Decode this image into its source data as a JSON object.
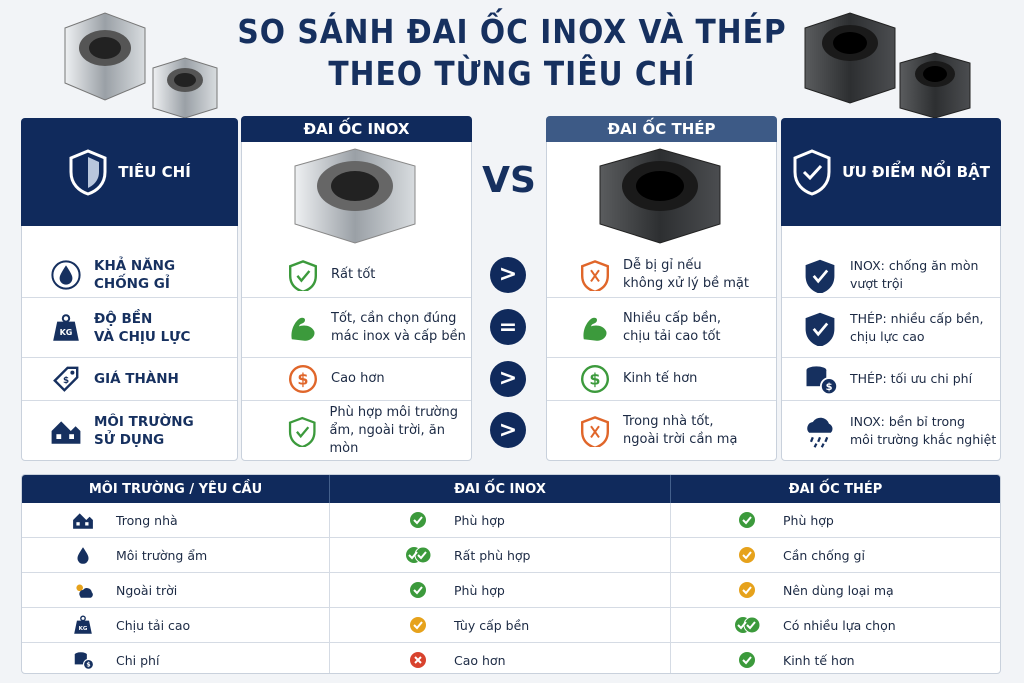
{
  "title": [
    "SO SÁNH ĐAI ỐC INOX VÀ THÉP",
    "THEO TỪNG TIÊU CHÍ"
  ],
  "comparison": {
    "headers": {
      "criteria": "TIÊU CHÍ",
      "inox": "ĐAI ỐC INOX",
      "vs": "VS",
      "steel": "ĐAI ỐC THÉP",
      "advantages": "ƯU ĐIỂM NỔI BẬT"
    },
    "rows": [
      {
        "criterion": "KHẢ NĂNG\nCHỐNG GỈ",
        "inox": "Rất tốt",
        "compare": ">",
        "steel": "Dễ bị gỉ nếu\nkhông xử lý bề mặt",
        "advantage": "INOX: chống ăn mòn\nvượt trội"
      },
      {
        "criterion": "ĐỘ BỀN\nVÀ CHỊU LỰC",
        "inox": "Tốt, cần chọn đúng\nmác inox và cấp bền",
        "compare": "=",
        "steel": "Nhiều cấp bền,\nchịu tải cao tốt",
        "advantage": "THÉP: nhiều cấp bền,\nchịu lực cao"
      },
      {
        "criterion": "GIÁ THÀNH",
        "inox": "Cao hơn",
        "compare": ">",
        "steel": "Kinh tế hơn",
        "advantage": "THÉP: tối ưu chi phí"
      },
      {
        "criterion": "MÔI TRƯỜNG\nSỬ DỤNG",
        "inox": "Phù hợp môi trường\nẩm, ngoài trời, ăn mòn",
        "compare": ">",
        "steel": "Trong nhà tốt,\nngoài trời cần mạ",
        "advantage": "INOX: bền bỉ trong\nmôi trường khắc nghiệt"
      }
    ]
  },
  "table": {
    "headers": [
      "MÔI TRƯỜNG / YÊU CẦU",
      "ĐAI ỐC INOX",
      "ĐAI ỐC THÉP"
    ],
    "rows": [
      [
        "Trong nhà",
        "Phù hợp",
        "Phù hợp"
      ],
      [
        "Môi trường ẩm",
        "Rất phù hợp",
        "Cần chống gỉ"
      ],
      [
        "Ngoài trời",
        "Phù hợp",
        "Nên dùng loại mạ"
      ],
      [
        "Chịu tải cao",
        "Tùy cấp bền",
        "Có nhiều lựa chọn"
      ],
      [
        "Chi phí",
        "Cao hơn",
        "Kinh tế hơn"
      ]
    ]
  }
}
